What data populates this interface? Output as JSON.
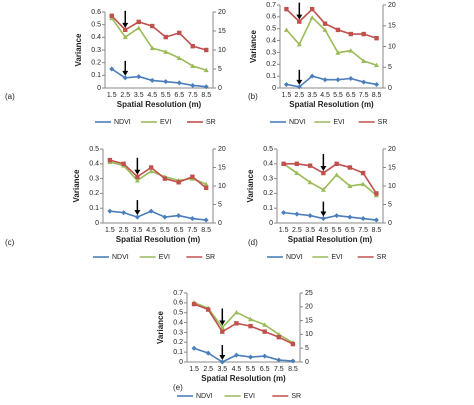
{
  "chart_data": [
    {
      "type": "line",
      "label": "(a)",
      "x_label": "Spatial Resolution (m)",
      "y_label": "Variance",
      "categories": [
        "1.5",
        "2.5",
        "3.5",
        "4.5",
        "5.5",
        "6.5",
        "7.5",
        "8.5"
      ],
      "ylim": [
        0,
        0.6
      ],
      "yticks": [
        0,
        0.1,
        0.2,
        0.3,
        0.4,
        0.5,
        0.6
      ],
      "y2lim": [
        0,
        20
      ],
      "y2ticks": [
        0,
        5,
        10,
        15,
        20
      ],
      "series": [
        {
          "name": "NDVI",
          "color": "#4a7ebb",
          "values": [
            0.15,
            0.08,
            0.09,
            0.06,
            0.05,
            0.04,
            0.02,
            0.01
          ]
        },
        {
          "name": "EVI",
          "color": "#9bbb59",
          "axis": "y2",
          "values": [
            18.4,
            13.4,
            15.8,
            10.5,
            9.5,
            7.9,
            5.8,
            4.7
          ]
        },
        {
          "name": "SR",
          "color": "#c0504d",
          "axis": "y2",
          "values": [
            19,
            15.3,
            17.4,
            16.3,
            13.4,
            14.5,
            11,
            10
          ]
        }
      ]
    },
    {
      "type": "line",
      "label": "(b)",
      "x_label": "Spatial Resolution (m)",
      "y_label": "Variance",
      "categories": [
        "1.5",
        "2.5",
        "3.5",
        "4.5",
        "5.5",
        "6.5",
        "7.5",
        "8.5"
      ],
      "ylim": [
        0,
        0.7
      ],
      "yticks": [
        0,
        0.1,
        0.2,
        0.3,
        0.4,
        0.5,
        0.6,
        0.7
      ],
      "y2lim": [
        0,
        20
      ],
      "y2ticks": [
        0,
        5,
        10,
        15,
        20
      ],
      "series": [
        {
          "name": "NDVI",
          "color": "#4a7ebb",
          "values": [
            0.03,
            0.01,
            0.1,
            0.07,
            0.07,
            0.08,
            0.05,
            0.03
          ]
        },
        {
          "name": "EVI",
          "color": "#9bbb59",
          "axis": "y2",
          "values": [
            14,
            10.5,
            17,
            14,
            8.5,
            9,
            6.5,
            5.5
          ]
        },
        {
          "name": "SR",
          "color": "#c0504d",
          "axis": "y2",
          "values": [
            19,
            16,
            19,
            15.5,
            14,
            13,
            13,
            12
          ]
        }
      ]
    },
    {
      "type": "line",
      "label": "(c)",
      "x_label": "Spatial Resolution (m)",
      "y_label": "Variance",
      "categories": [
        "1.5",
        "2.5",
        "3.5",
        "4.5",
        "5.5",
        "6.5",
        "7.5",
        "8.5"
      ],
      "ylim": [
        0,
        0.5
      ],
      "yticks": [
        0,
        0.1,
        0.2,
        0.3,
        0.4,
        0.5
      ],
      "y2lim": [
        0,
        20
      ],
      "y2ticks": [
        0,
        5,
        10,
        15,
        20
      ],
      "series": [
        {
          "name": "NDVI",
          "color": "#4a7ebb",
          "values": [
            0.08,
            0.07,
            0.04,
            0.08,
            0.04,
            0.05,
            0.03,
            0.02
          ]
        },
        {
          "name": "EVI",
          "color": "#9bbb59",
          "axis": "y2",
          "values": [
            16.5,
            15.5,
            11.5,
            14,
            12.5,
            11.5,
            12,
            10.5
          ]
        },
        {
          "name": "SR",
          "color": "#c0504d",
          "axis": "y2",
          "values": [
            17,
            16,
            12.5,
            15,
            12,
            11,
            12.5,
            9.5
          ]
        }
      ]
    },
    {
      "type": "line",
      "label": "(d)",
      "x_label": "Spatial Resolution (m)",
      "y_label": "Variance",
      "categories": [
        "1.5",
        "2.5",
        "3.5",
        "4.5",
        "5.5",
        "6.5",
        "7.5",
        "8.5"
      ],
      "ylim": [
        0,
        0.5
      ],
      "yticks": [
        0,
        0.1,
        0.2,
        0.3,
        0.4,
        0.5
      ],
      "y2lim": [
        0,
        20
      ],
      "y2ticks": [
        0,
        5,
        10,
        15,
        20
      ],
      "series": [
        {
          "name": "NDVI",
          "color": "#4a7ebb",
          "values": [
            0.07,
            0.06,
            0.05,
            0.03,
            0.05,
            0.04,
            0.03,
            0.02
          ]
        },
        {
          "name": "EVI",
          "color": "#9bbb59",
          "axis": "y2",
          "values": [
            16,
            13.5,
            11,
            9,
            13,
            10,
            10.5,
            7.5
          ]
        },
        {
          "name": "SR",
          "color": "#c0504d",
          "axis": "y2",
          "values": [
            16,
            16,
            15.5,
            13.5,
            16,
            15,
            13.5,
            8
          ]
        }
      ]
    },
    {
      "type": "line",
      "label": "(e)",
      "x_label": "Spatial Resolution (m)",
      "y_label": "Variance",
      "categories": [
        "1.5",
        "2.5",
        "3.5",
        "4.5",
        "5.5",
        "6.5",
        "7.5",
        "8.5"
      ],
      "ylim": [
        0,
        0.7
      ],
      "yticks": [
        0,
        0.1,
        0.2,
        0.3,
        0.4,
        0.5,
        0.6,
        0.7
      ],
      "y2lim": [
        0,
        25
      ],
      "y2ticks": [
        0,
        5,
        10,
        15,
        20,
        25
      ],
      "series": [
        {
          "name": "NDVI",
          "color": "#4a7ebb",
          "values": [
            0.14,
            0.09,
            0.0,
            0.07,
            0.05,
            0.06,
            0.02,
            0.01
          ]
        },
        {
          "name": "EVI",
          "color": "#9bbb59",
          "axis": "y2",
          "values": [
            21.5,
            19.5,
            12.5,
            18,
            15.5,
            13.5,
            10,
            7
          ]
        },
        {
          "name": "SR",
          "color": "#c0504d",
          "axis": "y2",
          "values": [
            21,
            19,
            11,
            14,
            13,
            11,
            9,
            6.5
          ]
        }
      ]
    }
  ]
}
